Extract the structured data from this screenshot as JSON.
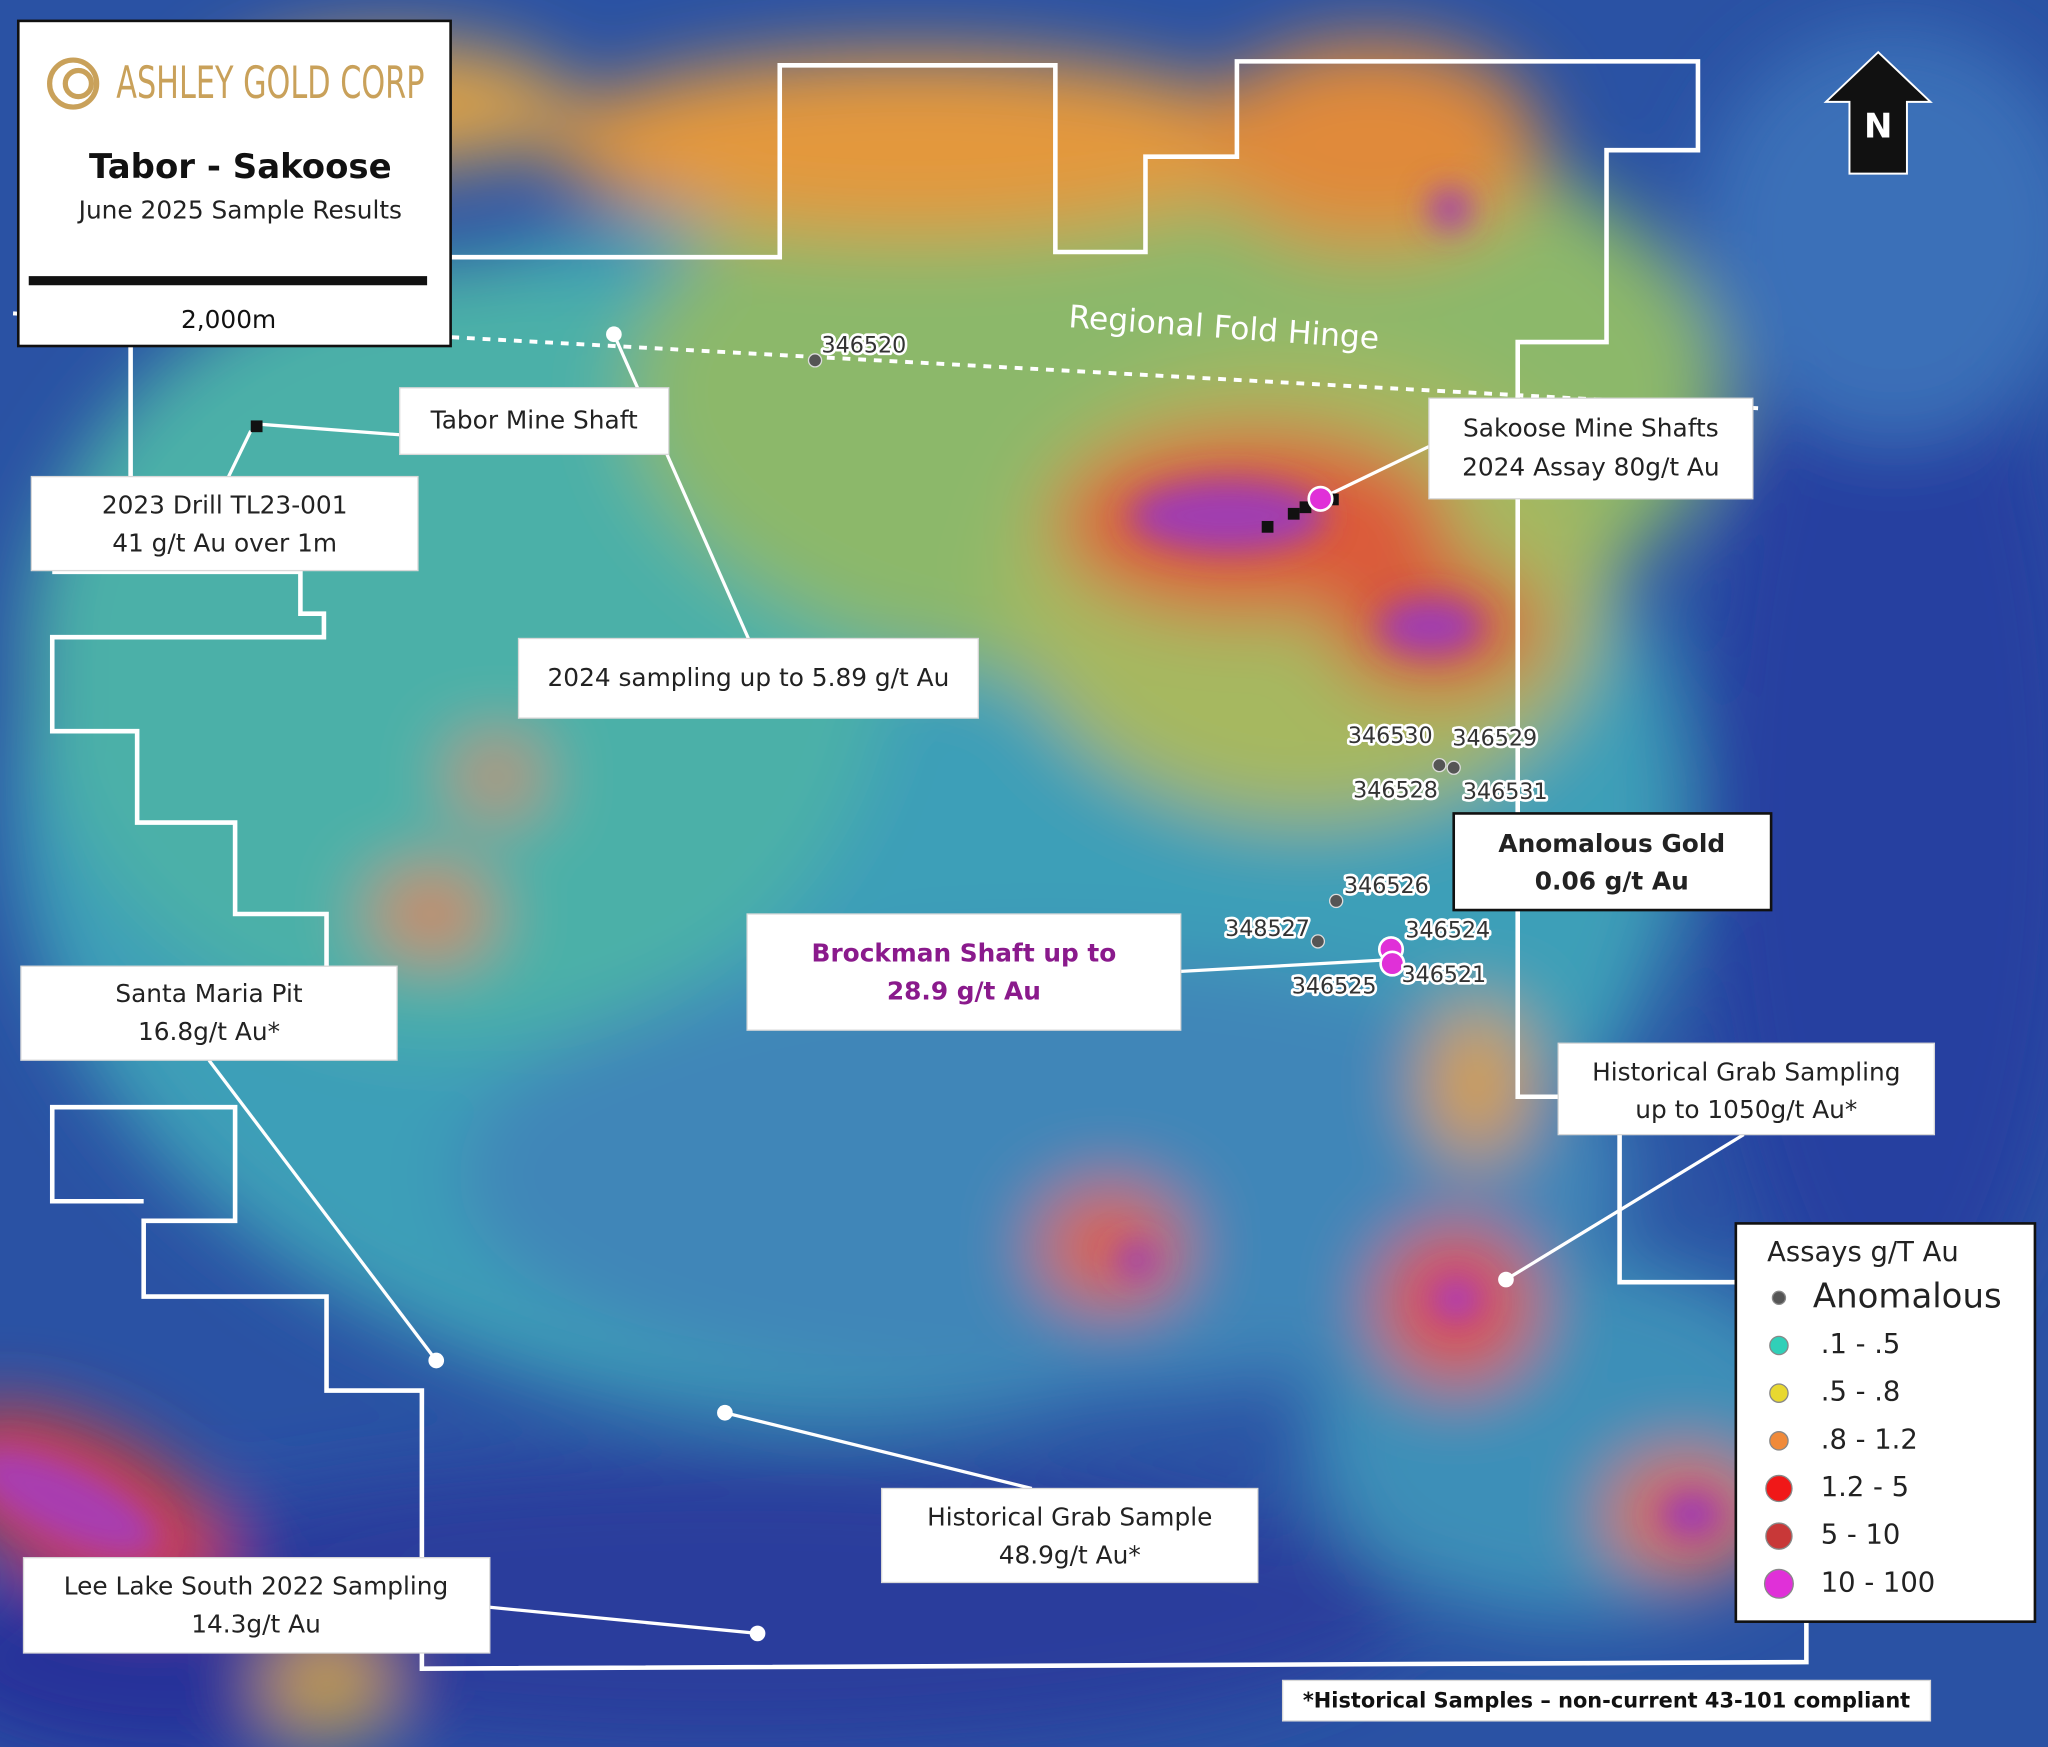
{
  "header": {
    "logo": "ASHLEY GOLD CORP",
    "title": "Tabor - Sakoose",
    "subtitle": "June 2025 Sample Results",
    "scale": "2,000m"
  },
  "north": "N",
  "fold_hinge": "Regional Fold Hinge",
  "callouts": {
    "tabor_mine_shaft": [
      "Tabor Mine Shaft"
    ],
    "drill_2023": [
      "2023 Drill TL23-001",
      "41 g/t Au over 1m"
    ],
    "sampling_2024": [
      "2024 sampling up to 5.89 g/t Au"
    ],
    "sakoose": [
      "Sakoose Mine Shafts",
      "2024 Assay 80g/t Au"
    ],
    "anomalous": [
      "Anomalous Gold",
      "0.06 g/t Au"
    ],
    "brockman": [
      "Brockman Shaft up to",
      "28.9 g/t Au"
    ],
    "santa_maria": [
      "Santa Maria Pit",
      "16.8g/t Au*"
    ],
    "historical_grab_sampling": [
      "Historical Grab Sampling",
      "up to 1050g/t Au*"
    ],
    "historical_grab_sample": [
      "Historical Grab Sample",
      "48.9g/t Au*"
    ],
    "lee_lake": [
      "Lee Lake South 2022 Sampling",
      "14.3g/t Au"
    ]
  },
  "sample_ids": [
    "346520",
    "346530",
    "346529",
    "346528",
    "346531",
    "346526",
    "348527",
    "346524",
    "346525",
    "346521"
  ],
  "legend": {
    "title": "Assays g/T Au",
    "items": [
      {
        "label": "Anomalous",
        "color": "#555555"
      },
      {
        "label": ".1 - .5",
        "color": "#30d0b8"
      },
      {
        "label": ".5 - .8",
        "color": "#e8d830"
      },
      {
        "label": ".8 - 1.2",
        "color": "#f08a3a"
      },
      {
        "label": "1.2 - 5",
        "color": "#f01818"
      },
      {
        "label": "5 - 10",
        "color": "#c83838"
      },
      {
        "label": "10 - 100",
        "color": "#e030d8"
      }
    ]
  },
  "footnote": "*Historical Samples – non-current 43-101 compliant"
}
